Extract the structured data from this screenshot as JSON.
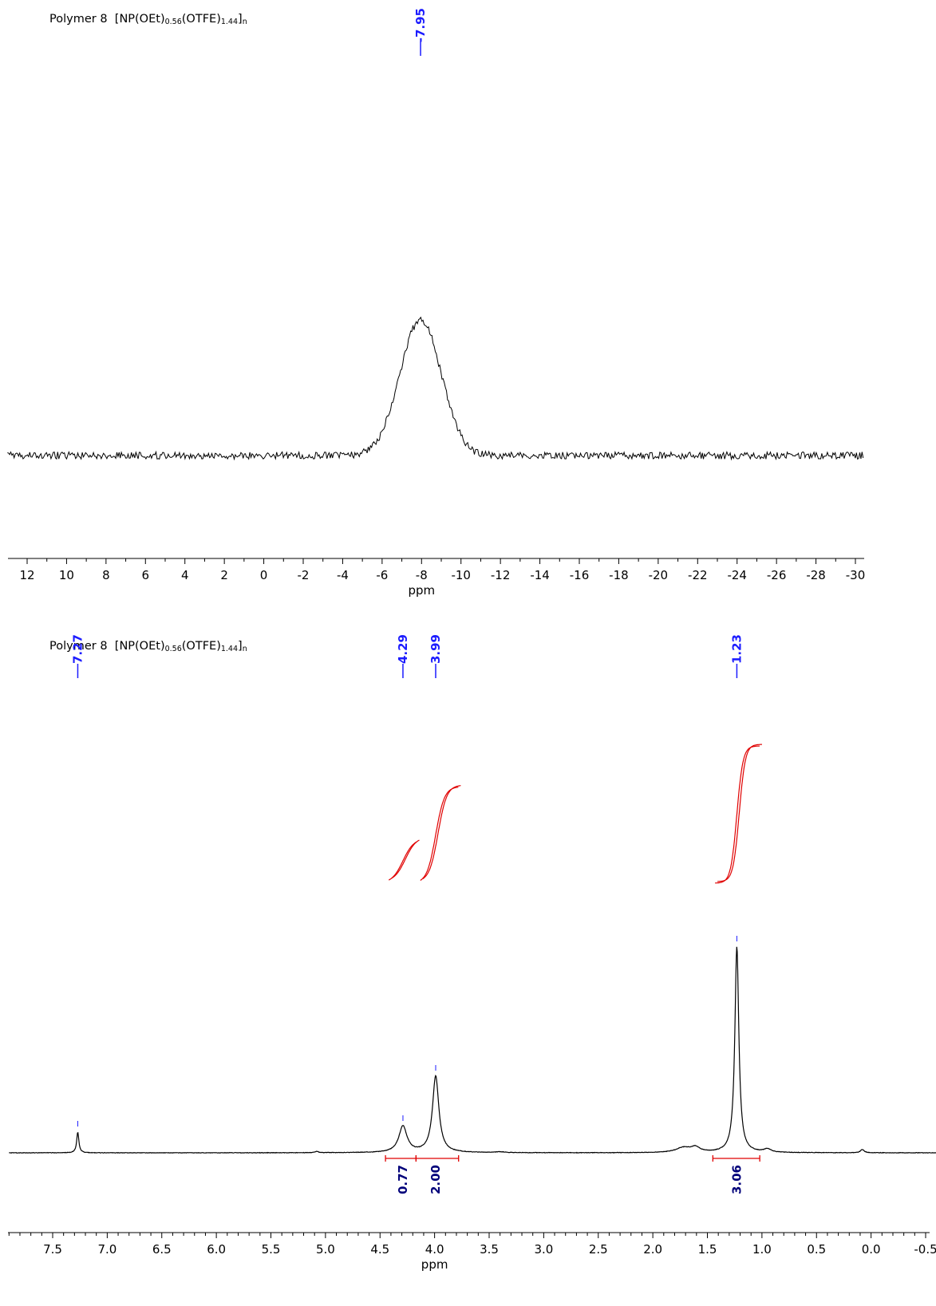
{
  "chart_data": [
    {
      "type": "line",
      "title_prefix": "Polymer 8",
      "formula": {
        "open": "[NP(OEt)",
        "sub1": "0.56",
        "mid": "(OTFE)",
        "sub2": "1.44",
        "close": "]",
        "sub3": "n"
      },
      "xlabel": "ppm",
      "xlim": [
        13,
        -30.5
      ],
      "ticks": [
        "12",
        "10",
        "8",
        "6",
        "4",
        "2",
        "0",
        "-2",
        "-4",
        "-6",
        "-8",
        "-10",
        "-12",
        "-14",
        "-16",
        "-18",
        "-20",
        "-22",
        "-24",
        "-26",
        "-28",
        "-30"
      ],
      "peak_labels": [
        "-7.95"
      ],
      "grid": false
    },
    {
      "type": "line",
      "title_prefix": "Polymer 8",
      "formula": {
        "open": "[NP(OEt)",
        "sub1": "0.56",
        "mid": "(OTFE)",
        "sub2": "1.44",
        "close": "]",
        "sub3": "n"
      },
      "xlabel": "ppm",
      "xlim": [
        7.9,
        -0.7
      ],
      "ticks": [
        "7.5",
        "7.0",
        "6.5",
        "6.0",
        "5.5",
        "5.0",
        "4.5",
        "4.0",
        "3.5",
        "3.0",
        "2.5",
        "2.0",
        "1.5",
        "1.0",
        "0.5",
        "0.0",
        "-0.5"
      ],
      "peak_labels": [
        "7.27",
        "4.29",
        "3.99",
        "1.23"
      ],
      "integrals": [
        "0.77",
        "2.00",
        "3.06"
      ],
      "grid": false
    }
  ],
  "colors": {
    "spectrum": "#000000",
    "peak_label": "#1c1cff",
    "integral": "#e00000",
    "integral_label": "#00007a"
  }
}
